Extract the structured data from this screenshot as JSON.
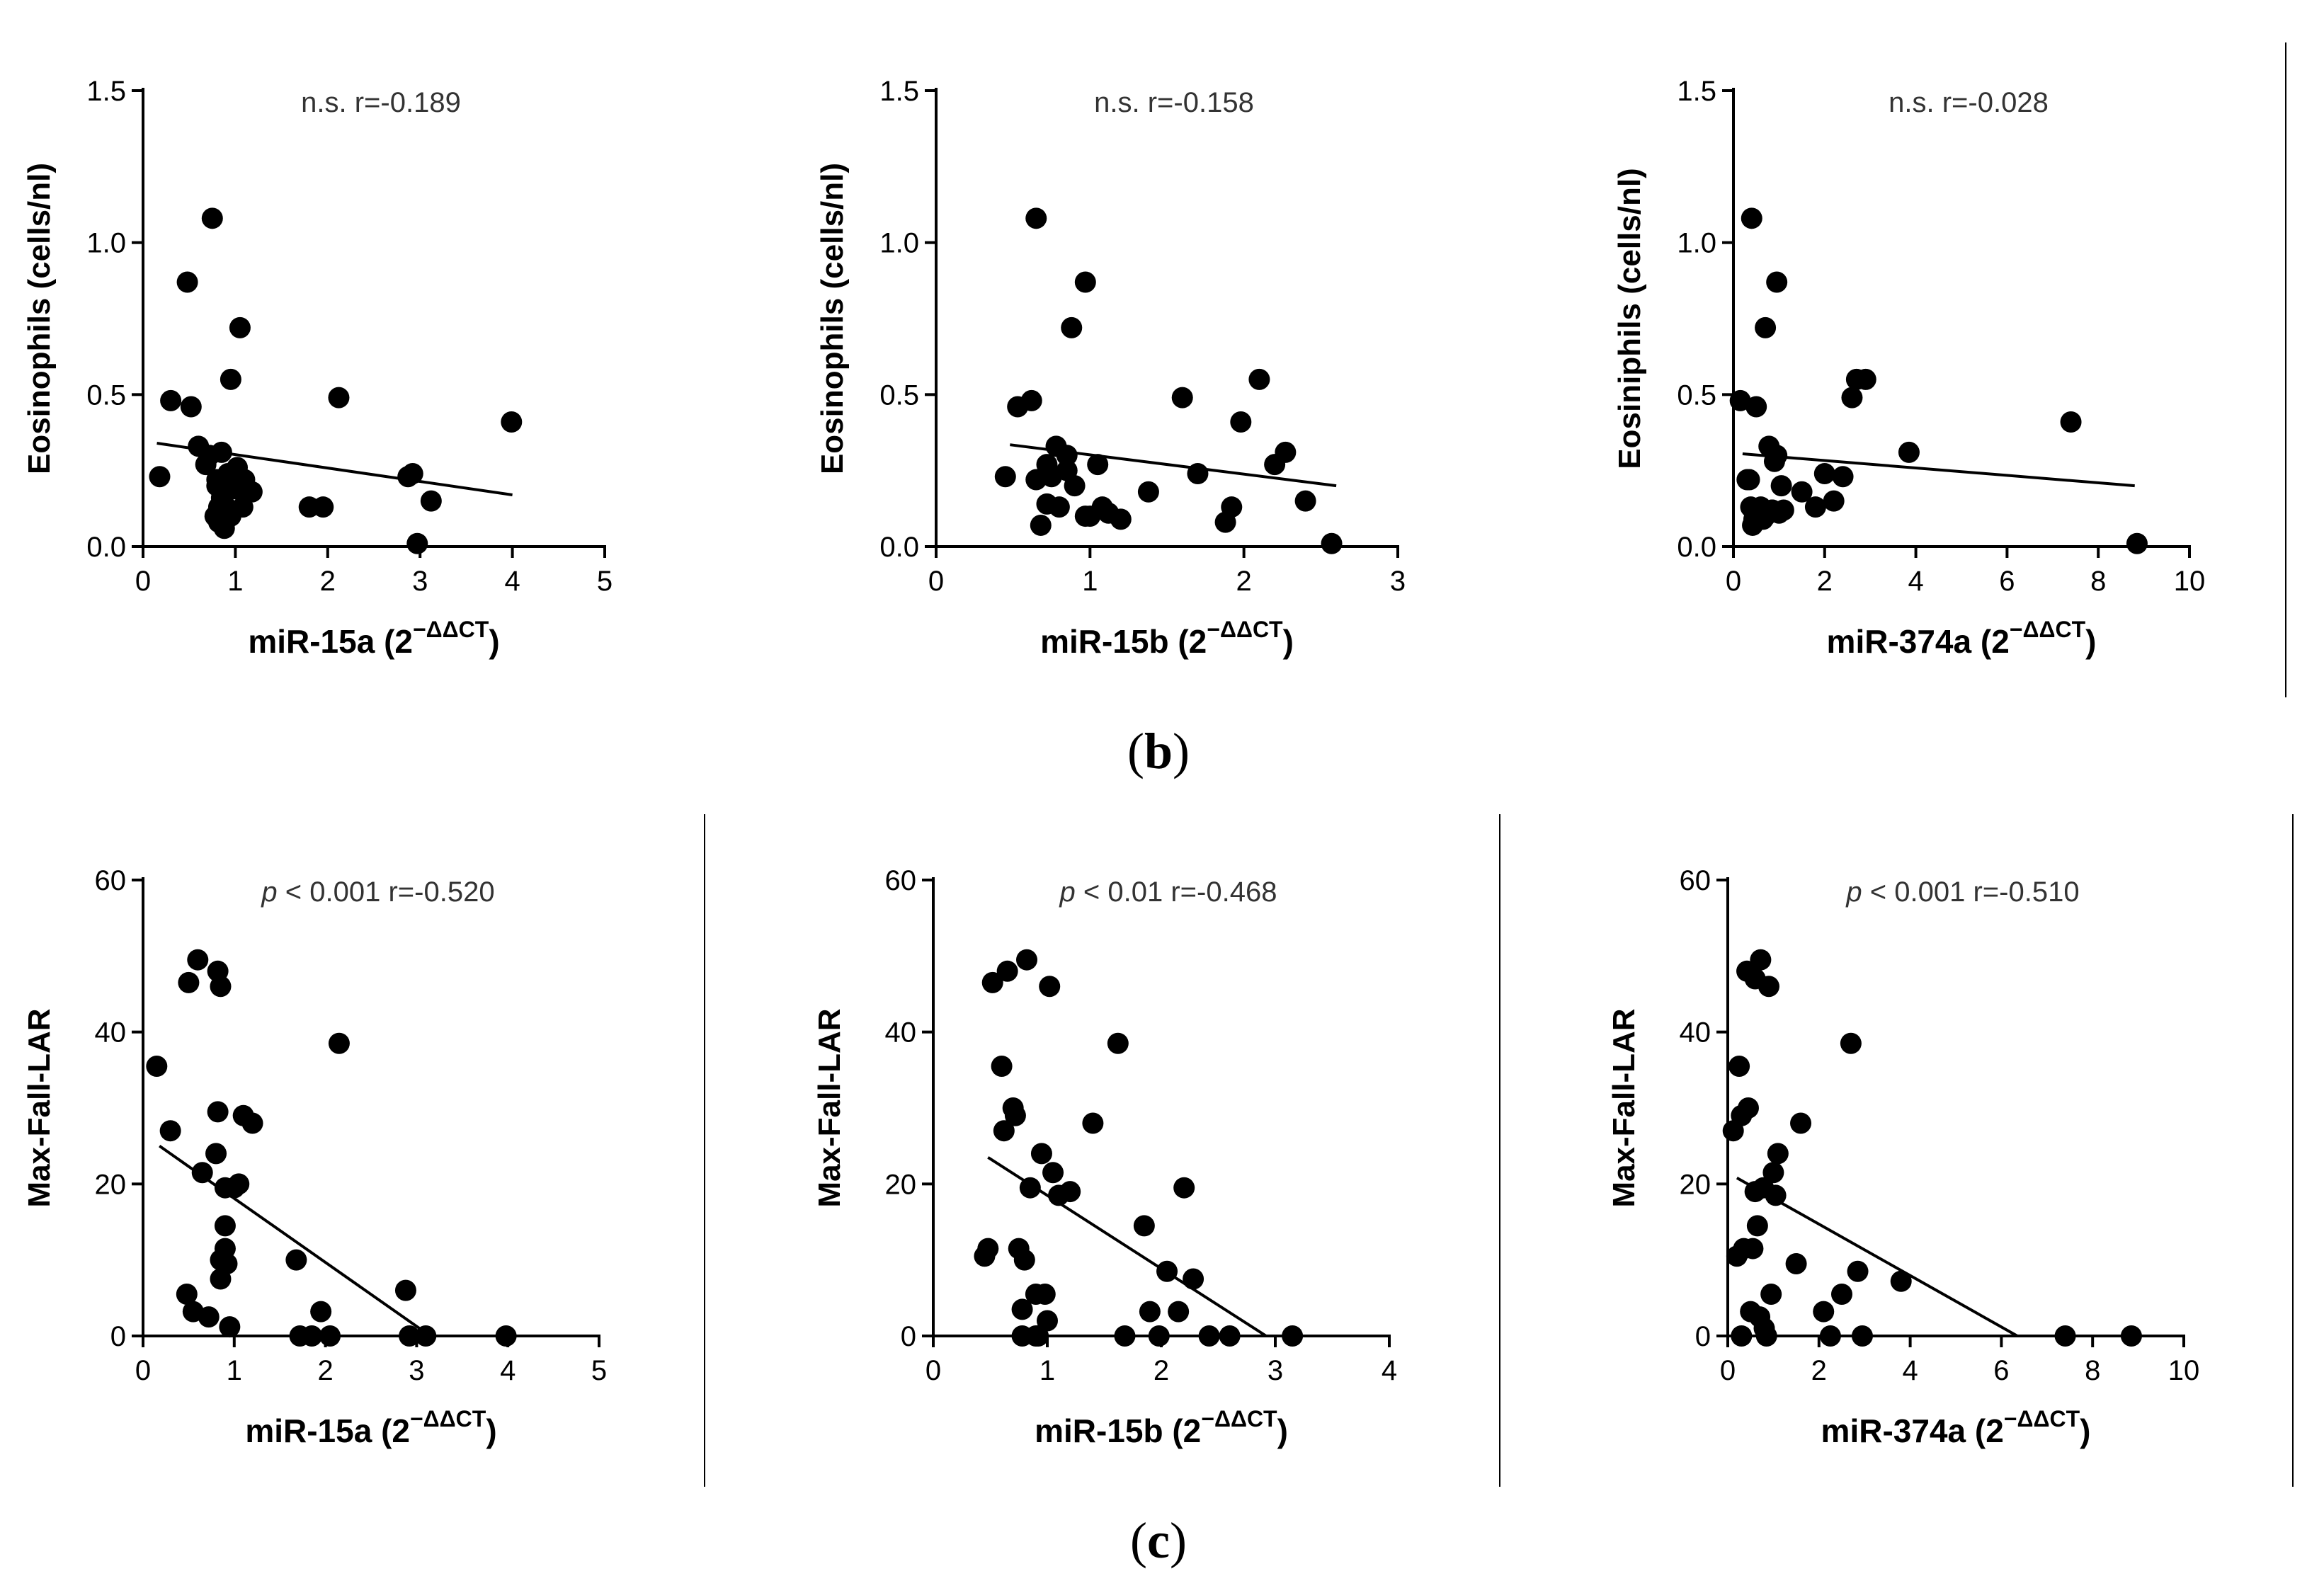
{
  "panels": [
    {
      "id": "b",
      "label_open": "(",
      "label_letter": "b",
      "label_close": ")"
    },
    {
      "id": "c",
      "label_open": "(",
      "label_letter": "c",
      "label_close": ")"
    }
  ],
  "chart_data": [
    {
      "type": "scatter",
      "row": "b",
      "col": 0,
      "stat_prefix": "n.s.",
      "stat_prefix_italic": false,
      "stat_r": " r=-0.189",
      "ylabel": "Eosinophils (cells/nl)",
      "xlabel_base": "miR-15a (2",
      "xlabel_sup": "−ΔΔCT",
      "xlabel_close": ")",
      "xlim": [
        0,
        5
      ],
      "xticks": [
        "0",
        "1",
        "2",
        "3",
        "4",
        "5"
      ],
      "ylim": [
        0,
        1.5
      ],
      "yticks": [
        "0.0",
        "0.5",
        "1.0",
        "1.5"
      ],
      "regression": {
        "x": [
          0.15,
          4.0
        ],
        "y": [
          0.34,
          0.17
        ]
      },
      "x": [
        0.18,
        0.3,
        0.48,
        0.52,
        0.6,
        0.68,
        0.72,
        0.78,
        0.82,
        0.8,
        0.85,
        0.88,
        0.82,
        0.9,
        0.92,
        0.95,
        0.95,
        1.0,
        1.02,
        1.05,
        1.08,
        1.1,
        1.18,
        0.75,
        0.8,
        1.8,
        1.95,
        2.12,
        2.87,
        2.92,
        2.97,
        3.12,
        3.99,
        0.85
      ],
      "y": [
        0.23,
        0.48,
        0.87,
        0.46,
        0.33,
        0.27,
        0.3,
        0.1,
        0.08,
        0.2,
        0.31,
        0.06,
        0.13,
        0.13,
        0.24,
        0.55,
        0.1,
        0.19,
        0.26,
        0.72,
        0.13,
        0.22,
        0.18,
        1.08,
        0.22,
        0.13,
        0.13,
        0.49,
        0.23,
        0.24,
        0.01,
        0.15,
        0.41,
        0.16
      ]
    },
    {
      "type": "scatter",
      "row": "b",
      "col": 1,
      "stat_prefix": "n.s.",
      "stat_prefix_italic": false,
      "stat_r": " r=-0.158",
      "ylabel": "Eosinophils (cells/nl)",
      "xlabel_base": "miR-15b (2",
      "xlabel_sup": "−ΔΔCT",
      "xlabel_close": ")",
      "xlim": [
        0,
        3
      ],
      "xticks": [
        "0",
        "1",
        "2",
        "3"
      ],
      "ylim": [
        0,
        1.5
      ],
      "yticks": [
        "0.0",
        "0.5",
        "1.0",
        "1.5"
      ],
      "regression": {
        "x": [
          0.48,
          2.6
        ],
        "y": [
          0.335,
          0.2
        ]
      },
      "x": [
        0.45,
        0.53,
        0.62,
        0.65,
        0.68,
        0.72,
        0.75,
        0.72,
        0.78,
        0.8,
        0.85,
        0.88,
        0.9,
        0.97,
        1.0,
        1.05,
        1.08,
        1.12,
        1.2,
        1.38,
        1.6,
        1.7,
        1.88,
        1.92,
        1.98,
        2.1,
        2.2,
        2.27,
        2.4,
        2.57,
        0.65,
        0.97,
        0.85
      ],
      "y": [
        0.23,
        0.46,
        0.48,
        0.22,
        0.07,
        0.14,
        0.23,
        0.27,
        0.33,
        0.13,
        0.25,
        0.72,
        0.2,
        0.1,
        0.1,
        0.27,
        0.13,
        0.11,
        0.09,
        0.18,
        0.49,
        0.24,
        0.08,
        0.13,
        0.41,
        0.55,
        0.27,
        0.31,
        0.15,
        0.01,
        1.08,
        0.87,
        0.3
      ]
    },
    {
      "type": "scatter",
      "row": "b",
      "col": 2,
      "stat_prefix": "n.s.",
      "stat_prefix_italic": false,
      "stat_r": " r=-0.028",
      "ylabel": "Eosiniphils (cells/nl)",
      "xlabel_base": "miR-374a (2",
      "xlabel_sup": "−ΔΔCT",
      "xlabel_close": ")",
      "xlim": [
        0,
        10
      ],
      "xticks": [
        "0",
        "2",
        "4",
        "6",
        "8",
        "10"
      ],
      "ylim": [
        0,
        1.5
      ],
      "yticks": [
        "0.0",
        "0.5",
        "1.0",
        "1.5"
      ],
      "regression": {
        "x": [
          0.2,
          8.8
        ],
        "y": [
          0.305,
          0.2
        ]
      },
      "x": [
        0.15,
        0.3,
        0.35,
        0.38,
        0.42,
        0.5,
        0.55,
        0.6,
        0.65,
        0.7,
        0.78,
        0.85,
        0.9,
        0.95,
        1.0,
        1.05,
        0.4,
        0.85,
        0.95,
        1.5,
        1.8,
        2.0,
        2.2,
        2.4,
        2.6,
        2.7,
        2.9,
        3.85,
        7.4,
        8.85,
        0.5,
        0.7,
        1.1,
        0.45
      ],
      "y": [
        0.48,
        0.22,
        0.22,
        0.13,
        0.07,
        0.46,
        0.1,
        0.13,
        0.09,
        0.72,
        0.33,
        0.12,
        0.28,
        0.87,
        0.11,
        0.2,
        1.08,
        0.12,
        0.3,
        0.18,
        0.13,
        0.24,
        0.15,
        0.23,
        0.49,
        0.55,
        0.55,
        0.31,
        0.41,
        0.01,
        0.1,
        0.1,
        0.12,
        0.09
      ]
    },
    {
      "type": "scatter",
      "row": "c",
      "col": 0,
      "stat_prefix": "p",
      "stat_prefix_italic": true,
      "stat_r": " < 0.001 r=-0.520",
      "ylabel": "Max-Fall-LAR",
      "xlabel_base": "miR-15a (2",
      "xlabel_sup": "−ΔΔCT",
      "xlabel_close": ")",
      "xlim": [
        0,
        5
      ],
      "xticks": [
        "0",
        "1",
        "2",
        "3",
        "4",
        "5"
      ],
      "ylim": [
        0,
        60
      ],
      "yticks": [
        "0",
        "20",
        "40",
        "60"
      ],
      "regression": {
        "x": [
          0.18,
          3.15
        ],
        "y": [
          25.0,
          0
        ]
      },
      "x": [
        0.15,
        0.3,
        0.48,
        0.5,
        0.55,
        0.6,
        0.65,
        0.72,
        0.8,
        0.82,
        0.82,
        0.85,
        0.85,
        0.9,
        0.9,
        0.92,
        0.95,
        1.0,
        1.05,
        1.1,
        1.2,
        1.68,
        1.72,
        1.85,
        1.95,
        2.05,
        2.15,
        2.88,
        2.92,
        3.1,
        3.98,
        0.9,
        0.85
      ],
      "y": [
        35.5,
        27,
        5.5,
        46.5,
        3.2,
        49.5,
        21.5,
        2.5,
        24,
        29.5,
        48,
        46,
        7.5,
        14.5,
        11.5,
        9.5,
        1.2,
        19.5,
        20,
        29,
        28,
        10,
        0,
        0,
        3.2,
        0,
        38.5,
        6,
        0,
        0,
        0,
        19.5,
        10
      ]
    },
    {
      "type": "scatter",
      "row": "c",
      "col": 1,
      "stat_prefix": "p",
      "stat_prefix_italic": true,
      "stat_r": " < 0.01 r=-0.468",
      "ylabel": "Max-Fall-LAR",
      "xlabel_base": "miR-15b (2",
      "xlabel_sup": "−ΔΔCT",
      "xlabel_close": ")",
      "xlim": [
        0,
        4
      ],
      "xticks": [
        "0",
        "1",
        "2",
        "3",
        "4"
      ],
      "ylim": [
        0,
        60
      ],
      "yticks": [
        "0",
        "20",
        "40",
        "60"
      ],
      "regression": {
        "x": [
          0.48,
          2.92
        ],
        "y": [
          23.5,
          0
        ]
      },
      "x": [
        0.45,
        0.48,
        0.52,
        0.6,
        0.62,
        0.65,
        0.7,
        0.72,
        0.75,
        0.78,
        0.8,
        0.82,
        0.85,
        0.9,
        0.92,
        0.95,
        0.98,
        1.0,
        1.02,
        1.05,
        1.1,
        1.2,
        1.4,
        1.62,
        1.68,
        1.85,
        1.9,
        1.98,
        2.05,
        2.15,
        2.2,
        2.28,
        2.42,
        2.6,
        3.15,
        0.78,
        0.9
      ],
      "y": [
        10.5,
        11.5,
        46.5,
        35.5,
        27,
        48,
        30,
        29,
        11.5,
        0,
        10,
        49.5,
        19.5,
        0,
        0,
        24,
        5.5,
        2,
        46,
        21.5,
        18.5,
        19,
        28,
        38.5,
        0,
        14.5,
        3.2,
        0,
        8.5,
        3.2,
        19.5,
        7.5,
        0,
        0,
        0,
        3.5,
        5.5
      ]
    },
    {
      "type": "scatter",
      "row": "c",
      "col": 2,
      "stat_prefix": "p",
      "stat_prefix_italic": true,
      "stat_r": " < 0.001 r=-0.510",
      "ylabel": "Max-Fall-LAR",
      "xlabel_base": "miR-374a (2",
      "xlabel_sup": "−ΔΔCT",
      "xlabel_close": ")",
      "xlim": [
        0,
        10
      ],
      "xticks": [
        "0",
        "2",
        "4",
        "6",
        "8",
        "10"
      ],
      "ylim": [
        0,
        60
      ],
      "yticks": [
        "0",
        "20",
        "40",
        "60"
      ],
      "regression": {
        "x": [
          0.2,
          6.35
        ],
        "y": [
          20.8,
          0
        ]
      },
      "x": [
        0.12,
        0.2,
        0.25,
        0.3,
        0.35,
        0.42,
        0.45,
        0.5,
        0.6,
        0.65,
        0.72,
        0.78,
        0.85,
        0.9,
        0.95,
        1.0,
        1.05,
        1.1,
        1.5,
        1.6,
        2.1,
        2.25,
        2.5,
        2.7,
        2.85,
        2.95,
        3.8,
        7.4,
        8.85,
        0.55,
        0.7,
        0.8,
        0.3,
        0.6
      ],
      "y": [
        27,
        10.5,
        35.5,
        29,
        11.5,
        48,
        30,
        3.2,
        47,
        14.5,
        49.5,
        19.5,
        0,
        46,
        5.5,
        21.5,
        18.5,
        24,
        9.5,
        28,
        3.2,
        0,
        5.5,
        38.5,
        8.5,
        0,
        7.2,
        0,
        0,
        11.5,
        2.5,
        1,
        0,
        19
      ]
    }
  ]
}
